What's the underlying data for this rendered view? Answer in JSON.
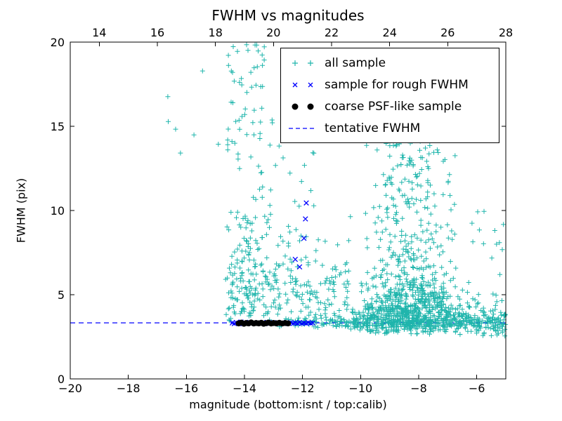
{
  "chart_data": {
    "type": "scatter",
    "title": "FWHM vs magnitudes",
    "xlabel": "magnitude (bottom:isnt / top:calib)",
    "ylabel": "FWHM (pix)",
    "xlim": [
      -20,
      -5
    ],
    "ylim": [
      0,
      20
    ],
    "x_ticks_bottom": [
      -20,
      -18,
      -16,
      -14,
      -12,
      -10,
      -8,
      -6
    ],
    "x_ticks_top": [
      14,
      16,
      18,
      20,
      22,
      24,
      26,
      28
    ],
    "top_axis_offset": 33,
    "y_ticks": [
      0,
      5,
      10,
      15,
      20
    ],
    "grid": false,
    "legend_position": "upper right",
    "legend": [
      {
        "label": "all sample",
        "marker": "plus",
        "color": "#1fb5ac"
      },
      {
        "label": "sample for rough FWHM",
        "marker": "x",
        "color": "#0000ff"
      },
      {
        "label": "coarse PSF-like sample",
        "marker": "dot",
        "color": "#000000"
      },
      {
        "label": "tentative FWHM",
        "marker": "dashed-line",
        "color": "#0000ff"
      }
    ],
    "line": {
      "name": "tentative FWHM",
      "style": "dashed",
      "color": "#0000ff",
      "y": 3.33
    },
    "series": [
      {
        "name": "all sample",
        "marker": "plus",
        "color": "#1fb5ac",
        "clusters": [
          {
            "n": 130,
            "x": {
              "dist": "uniform",
              "min": -14.65,
              "max": -13.3
            },
            "y": {
              "dist": "normal",
              "mean": 5.2,
              "sd": 1.8,
              "min": 3.2,
              "max": 11
            }
          },
          {
            "n": 80,
            "x": {
              "dist": "uniform",
              "min": -14.6,
              "max": -13.3
            },
            "y": {
              "dist": "uniform",
              "min": 7.5,
              "max": 20
            }
          },
          {
            "n": 7,
            "x": {
              "dist": "uniform",
              "min": -16.7,
              "max": -14.8
            },
            "y": {
              "dist": "uniform",
              "min": 12.5,
              "max": 19.3
            }
          },
          {
            "n": 110,
            "x": {
              "dist": "uniform",
              "min": -13.3,
              "max": -11.45
            },
            "y": {
              "dist": "normal",
              "mean": 4.8,
              "sd": 1.8,
              "min": 3.1,
              "max": 11
            }
          },
          {
            "n": 30,
            "x": {
              "dist": "uniform",
              "min": -13.25,
              "max": -11.5
            },
            "y": {
              "dist": "uniform",
              "min": 8,
              "max": 15.5
            }
          },
          {
            "n": 60,
            "x": {
              "dist": "uniform",
              "min": -11.45,
              "max": -10.35
            },
            "y": {
              "dist": "normal",
              "mean": 5.0,
              "sd": 2.2,
              "min": 3.0,
              "max": 13.5
            }
          },
          {
            "n": 480,
            "x": {
              "dist": "normal",
              "mean": -8.3,
              "sd": 0.8,
              "min": -10.3,
              "max": -6.6
            },
            "y": {
              "dist": "normal",
              "mean": 4.2,
              "sd": 1.1,
              "min": 2.6,
              "max": 8.5
            }
          },
          {
            "n": 260,
            "x": {
              "dist": "normal",
              "mean": -8.3,
              "sd": 0.75,
              "min": -10.1,
              "max": -6.7
            },
            "y": {
              "dist": "uniform",
              "min": 5.5,
              "max": 15.2
            }
          },
          {
            "n": 230,
            "x": {
              "dist": "uniform",
              "min": -10.35,
              "max": -6.5
            },
            "y": {
              "dist": "normal",
              "mean": 3.5,
              "sd": 0.5,
              "min": 2.6,
              "max": 5.5
            }
          },
          {
            "n": 210,
            "x": {
              "dist": "uniform",
              "min": -12.3,
              "max": -5.05
            },
            "y": {
              "dist": "normal",
              "mean": 3.32,
              "sd": 0.17,
              "min": 2.9,
              "max": 3.8
            }
          },
          {
            "n": 120,
            "x": {
              "dist": "uniform",
              "min": -6.6,
              "max": -5.0
            },
            "y": {
              "dist": "normal",
              "mean": 3.4,
              "sd": 0.6,
              "min": 2.5,
              "max": 5.8
            }
          },
          {
            "n": 22,
            "x": {
              "dist": "uniform",
              "min": -6.9,
              "max": -5.0
            },
            "y": {
              "dist": "uniform",
              "min": 4.5,
              "max": 10.3
            }
          },
          {
            "n": 12,
            "x": {
              "dist": "uniform",
              "min": -13.3,
              "max": -11.6
            },
            "y": {
              "dist": "normal",
              "mean": 3.35,
              "sd": 0.15,
              "min": 3.0,
              "max": 3.7
            }
          }
        ]
      },
      {
        "name": "sample for rough FWHM",
        "marker": "x",
        "color": "#0000ff",
        "points": [
          [
            -14.42,
            3.32
          ],
          [
            -14.35,
            3.28
          ],
          [
            -14.28,
            3.35
          ],
          [
            -14.2,
            3.3
          ],
          [
            -14.12,
            3.38
          ],
          [
            -14.05,
            3.27
          ],
          [
            -13.98,
            3.33
          ],
          [
            -13.9,
            3.3
          ],
          [
            -13.82,
            3.36
          ],
          [
            -13.75,
            3.28
          ],
          [
            -13.68,
            3.32
          ],
          [
            -13.6,
            3.3
          ],
          [
            -13.52,
            3.35
          ],
          [
            -13.45,
            3.29
          ],
          [
            -13.38,
            3.33
          ],
          [
            -13.3,
            3.31
          ],
          [
            -13.22,
            3.36
          ],
          [
            -13.15,
            3.28
          ],
          [
            -13.08,
            3.32
          ],
          [
            -13.0,
            3.34
          ],
          [
            -12.92,
            3.29
          ],
          [
            -12.85,
            3.33
          ],
          [
            -12.78,
            3.3
          ],
          [
            -12.7,
            3.35
          ],
          [
            -12.62,
            3.28
          ],
          [
            -12.55,
            3.32
          ],
          [
            -12.48,
            3.3
          ],
          [
            -12.4,
            3.34
          ],
          [
            -12.32,
            3.29
          ],
          [
            -12.25,
            3.33
          ],
          [
            -12.18,
            3.3
          ],
          [
            -12.1,
            3.35
          ],
          [
            -12.02,
            3.28
          ],
          [
            -11.95,
            3.32
          ],
          [
            -11.88,
            3.3
          ],
          [
            -11.8,
            3.34
          ],
          [
            -11.72,
            3.3
          ],
          [
            -11.65,
            3.32
          ],
          [
            -12.25,
            7.1
          ],
          [
            -12.1,
            6.65
          ],
          [
            -11.87,
            10.45
          ],
          [
            -11.9,
            9.5
          ],
          [
            -11.95,
            8.35
          ]
        ]
      },
      {
        "name": "coarse PSF-like sample",
        "marker": "dot",
        "color": "#000000",
        "points": [
          [
            -14.2,
            3.3
          ],
          [
            -14.11,
            3.34
          ],
          [
            -14.02,
            3.28
          ],
          [
            -13.94,
            3.32
          ],
          [
            -13.86,
            3.3
          ],
          [
            -13.77,
            3.35
          ],
          [
            -13.68,
            3.29
          ],
          [
            -13.6,
            3.32
          ],
          [
            -13.51,
            3.3
          ],
          [
            -13.42,
            3.33
          ],
          [
            -13.34,
            3.28
          ],
          [
            -13.25,
            3.31
          ],
          [
            -13.17,
            3.34
          ],
          [
            -13.08,
            3.29
          ],
          [
            -13.0,
            3.32
          ],
          [
            -12.9,
            3.3
          ],
          [
            -12.8,
            3.33
          ],
          [
            -12.7,
            3.29
          ],
          [
            -12.6,
            3.32
          ],
          [
            -12.5,
            3.3
          ]
        ]
      }
    ]
  }
}
